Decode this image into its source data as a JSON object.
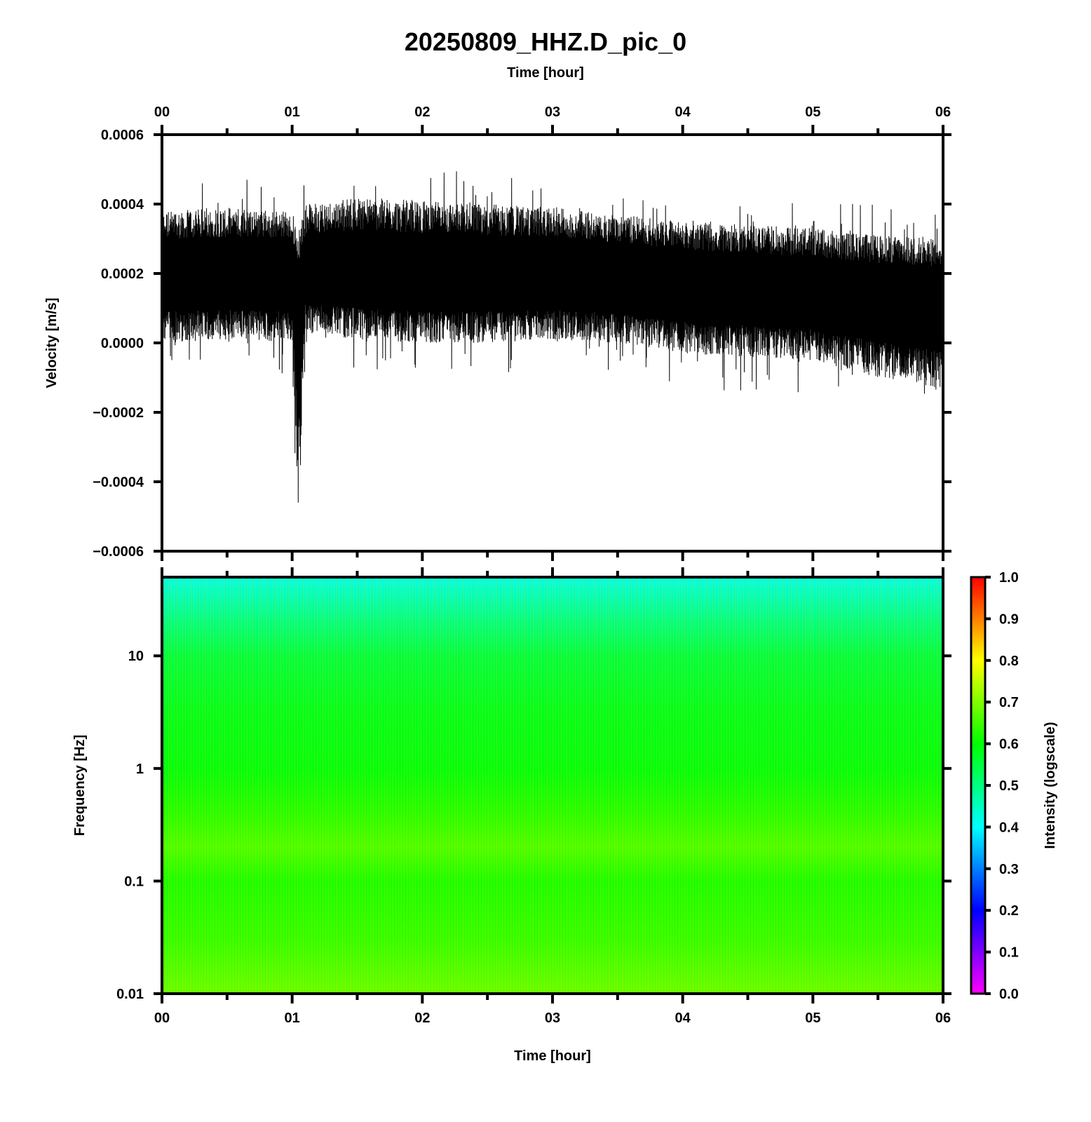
{
  "title": "20250809_HHZ.D_pic_0",
  "chart_data": [
    {
      "type": "line",
      "title": "20250809_HHZ.D_pic_0",
      "xlabel": "Time [hour]",
      "ylabel": "Velocity [m/s]",
      "xlim": [
        0,
        6
      ],
      "ylim": [
        -0.0006,
        0.0006
      ],
      "x_ticks": [
        "00",
        "01",
        "02",
        "03",
        "04",
        "05",
        "06"
      ],
      "y_ticks": [
        "0.0006",
        "0.0004",
        "0.0002",
        "0.0000",
        "−0.0002",
        "−0.0004",
        "−0.0006"
      ],
      "y_tick_values": [
        0.0006,
        0.0004,
        0.0002,
        0.0,
        -0.0002,
        -0.0004,
        -0.0006
      ],
      "series": [
        {
          "color": "#000000",
          "x_hours": [
            0.0,
            0.5,
            1.0,
            1.05,
            1.1,
            1.5,
            2.0,
            2.5,
            3.0,
            3.5,
            4.0,
            4.5,
            5.0,
            5.5,
            6.0
          ],
          "upper_envelope": [
            0.00038,
            0.00039,
            0.00038,
            0.00032,
            0.0004,
            0.00042,
            0.00041,
            0.0004,
            0.00039,
            0.00037,
            0.00035,
            0.00034,
            0.00033,
            0.00031,
            0.0003
          ],
          "mean": [
            0.0002,
            0.0002,
            0.0002,
            0.0001,
            0.00021,
            0.00021,
            0.0002,
            0.0002,
            0.0002,
            0.00019,
            0.00017,
            0.00016,
            0.00015,
            0.00013,
            0.00012
          ],
          "lower_envelope": [
            0.0,
            1e-05,
            0.0,
            -0.00052,
            3e-05,
            1e-05,
            0.0,
            0.0,
            1e-05,
            0.0,
            -3e-05,
            -4e-05,
            -5e-05,
            -0.0001,
            -0.00014
          ],
          "peak_max": 0.00053,
          "peak_min": -0.00052
        }
      ]
    },
    {
      "type": "heatmap",
      "xlabel": "Time [hour]",
      "ylabel": "Frequency [Hz]",
      "xlim": [
        0,
        6
      ],
      "ylim": [
        0.01,
        50
      ],
      "y_scale": "log",
      "x_ticks": [
        "00",
        "01",
        "02",
        "03",
        "04",
        "05",
        "06"
      ],
      "y_ticks": [
        "10",
        "1",
        "0.1",
        "0.01"
      ],
      "y_tick_values": [
        10,
        1,
        0.1,
        0.01
      ],
      "intensity_by_frequency": [
        {
          "freq_hz": 50,
          "intensity": 0.42
        },
        {
          "freq_hz": 20,
          "intensity": 0.5
        },
        {
          "freq_hz": 10,
          "intensity": 0.55
        },
        {
          "freq_hz": 3,
          "intensity": 0.58
        },
        {
          "freq_hz": 1,
          "intensity": 0.59
        },
        {
          "freq_hz": 0.4,
          "intensity": 0.63
        },
        {
          "freq_hz": 0.2,
          "intensity": 0.66
        },
        {
          "freq_hz": 0.1,
          "intensity": 0.62
        },
        {
          "freq_hz": 0.03,
          "intensity": 0.64
        },
        {
          "freq_hz": 0.01,
          "intensity": 0.68
        }
      ],
      "colorbar": {
        "label": "Intensity (logscale)",
        "range": [
          0.0,
          1.0
        ],
        "ticks": [
          "1.0",
          "0.9",
          "0.8",
          "0.7",
          "0.6",
          "0.5",
          "0.4",
          "0.3",
          "0.2",
          "0.1",
          "0.0"
        ],
        "colormap": [
          "#ff00ff",
          "#0000ff",
          "#00ffff",
          "#00ff00",
          "#ffff00",
          "#ff0000"
        ]
      }
    }
  ]
}
